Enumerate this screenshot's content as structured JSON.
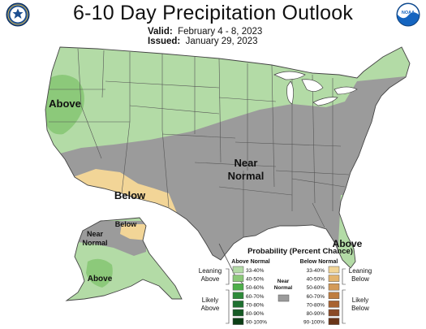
{
  "header": {
    "title": "6-10 Day Precipitation Outlook",
    "valid_label": "Valid:",
    "valid_value": "February 4 - 8, 2023",
    "issued_label": "Issued:",
    "issued_value": "January 29, 2023",
    "left_logo_icon": "commerce-seal-icon",
    "right_logo_icon": "noaa-logo-icon",
    "right_logo_text": "NOAA"
  },
  "map": {
    "region_labels": {
      "above_west": "Above",
      "near_normal_line1": "Near",
      "near_normal_line2": "Normal",
      "below_southwest": "Below",
      "above_florida": "Above",
      "alaska_below": "Below",
      "alaska_near_line1": "Near",
      "alaska_near_line2": "Normal",
      "alaska_above": "Above"
    },
    "colors": {
      "above_33_40": "#b3dba6",
      "above_40_50": "#8cc97a",
      "near_normal": "#9b9b9b",
      "below_33_40": "#f2d597",
      "state_line": "#555555",
      "coast": "#444444"
    }
  },
  "legend": {
    "title": "Probability (Percent Chance)",
    "above_header": "Above Normal",
    "below_header": "Below Normal",
    "near_label_line1": "Near",
    "near_label_line2": "Normal",
    "leaning_above_line1": "Leaning",
    "leaning_above_line2": "Above",
    "likely_above_line1": "Likely",
    "likely_above_line2": "Above",
    "leaning_below_line1": "Leaning",
    "leaning_below_line2": "Below",
    "likely_below_line1": "Likely",
    "likely_below_line2": "Below",
    "above_ranges": [
      "33-40%",
      "40-50%",
      "50-60%",
      "60-70%",
      "70-80%",
      "80-90%",
      "90-100%"
    ],
    "below_ranges": [
      "33-40%",
      "40-50%",
      "50-60%",
      "60-70%",
      "70-80%",
      "80-90%",
      "90-100%"
    ],
    "above_colors": [
      "#b3dba6",
      "#8cc97a",
      "#4daf4a",
      "#2e8b3a",
      "#1e7030",
      "#155a24",
      "#0c3f16"
    ],
    "below_colors": [
      "#f2d597",
      "#e3b46e",
      "#d39a58",
      "#bf7d40",
      "#a86332",
      "#8a4a26",
      "#6a3518"
    ],
    "near_color": "#9b9b9b"
  }
}
